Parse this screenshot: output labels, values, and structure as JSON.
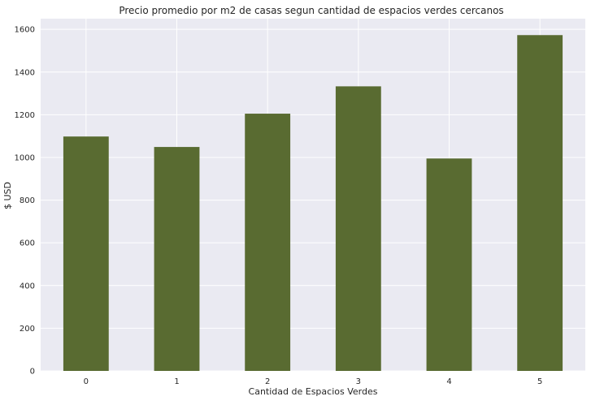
{
  "chart_data": {
    "type": "bar",
    "title": "Precio promedio por m2 de casas segun cantidad de espacios verdes cercanos",
    "xlabel": "Cantidad de Espacios Verdes",
    "ylabel": "$ USD",
    "categories": [
      "0",
      "1",
      "2",
      "3",
      "4",
      "5"
    ],
    "values": [
      1098,
      1049,
      1205,
      1333,
      995,
      1573
    ],
    "ylim": [
      0,
      1650
    ],
    "yticks": [
      0,
      200,
      400,
      600,
      800,
      1000,
      1200,
      1400,
      1600
    ],
    "grid": true,
    "legend": false,
    "colors": {
      "bar": "#596b31",
      "background": "#eaeaf2",
      "grid": "#ffffff",
      "text": "#262626"
    }
  }
}
